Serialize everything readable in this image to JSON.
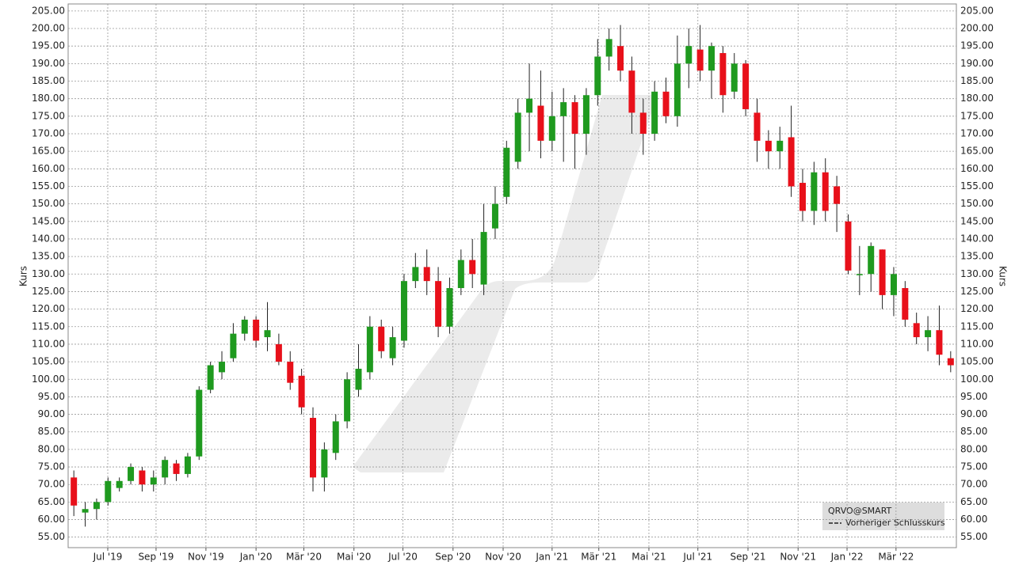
{
  "chart_data": {
    "type": "candlestick",
    "ylabel": "Kurs",
    "legend": {
      "symbol": "QRVO@SMART",
      "previous_close": "Vorheriger Schlusskurs"
    },
    "up_color": "#1f9a1f",
    "down_color": "#e8101a",
    "grid": true,
    "xlim": [
      0,
      78
    ],
    "xticks": [
      {
        "value": 3.48,
        "label": "Jul '19"
      },
      {
        "value": 7.72,
        "label": "Sep '19"
      },
      {
        "value": 12.1,
        "label": "Nov '19"
      },
      {
        "value": 16.5,
        "label": "Jan '20"
      },
      {
        "value": 20.7,
        "label": "Mär '20"
      },
      {
        "value": 25.1,
        "label": "Mai '20"
      },
      {
        "value": 29.4,
        "label": "Jul '20"
      },
      {
        "value": 33.8,
        "label": "Sep '20"
      },
      {
        "value": 38.2,
        "label": "Nov '20"
      },
      {
        "value": 42.5,
        "label": "Jan '21"
      },
      {
        "value": 46.6,
        "label": "Mär '21"
      },
      {
        "value": 51,
        "label": "Mai '21"
      },
      {
        "value": 55.3,
        "label": "Jul '21"
      },
      {
        "value": 59.7,
        "label": "Sep '21"
      },
      {
        "value": 64.1,
        "label": "Nov '21"
      },
      {
        "value": 68.4,
        "label": "Jan '22"
      },
      {
        "value": 72.7,
        "label": "Mär '22"
      }
    ],
    "ylim": [
      52,
      207
    ],
    "yticks": [
      {
        "value": 55,
        "label": "55.00"
      },
      {
        "value": 60,
        "label": "60.00"
      },
      {
        "value": 65,
        "label": "65.00"
      },
      {
        "value": 70,
        "label": "70.00"
      },
      {
        "value": 75,
        "label": "75.00"
      },
      {
        "value": 80,
        "label": "80.00"
      },
      {
        "value": 85,
        "label": "85.00"
      },
      {
        "value": 90,
        "label": "90.00"
      },
      {
        "value": 95,
        "label": "95.00"
      },
      {
        "value": 100,
        "label": "100.00"
      },
      {
        "value": 105,
        "label": "105.00"
      },
      {
        "value": 110,
        "label": "110.00"
      },
      {
        "value": 115,
        "label": "115.00"
      },
      {
        "value": 120,
        "label": "120.00"
      },
      {
        "value": 125,
        "label": "125.00"
      },
      {
        "value": 130,
        "label": "130.00"
      },
      {
        "value": 135,
        "label": "135.00"
      },
      {
        "value": 140,
        "label": "140.00"
      },
      {
        "value": 145,
        "label": "145.00"
      },
      {
        "value": 150,
        "label": "150.00"
      },
      {
        "value": 155,
        "label": "155.00"
      },
      {
        "value": 160,
        "label": "160.00"
      },
      {
        "value": 165,
        "label": "165.00"
      },
      {
        "value": 170,
        "label": "170.00"
      },
      {
        "value": 175,
        "label": "175.00"
      },
      {
        "value": 180,
        "label": "180.00"
      },
      {
        "value": 185,
        "label": "185.00"
      },
      {
        "value": 190,
        "label": "190.00"
      },
      {
        "value": 195,
        "label": "195.00"
      },
      {
        "value": 200,
        "label": "200.00"
      },
      {
        "value": 205,
        "label": "205.00"
      }
    ],
    "open": [
      72,
      62,
      63,
      65,
      69,
      71,
      74,
      70,
      72,
      76,
      73,
      78,
      97,
      102,
      106,
      113,
      117,
      112,
      110,
      105,
      101,
      89,
      72,
      79,
      88,
      97,
      102,
      115,
      106,
      111,
      128,
      132,
      128,
      115,
      126,
      134,
      127,
      143,
      152,
      162,
      176,
      178,
      168,
      175,
      179,
      170,
      181,
      192,
      195,
      188,
      176,
      170,
      182,
      175,
      190,
      194,
      188,
      193,
      182,
      190,
      176,
      168,
      165,
      169,
      156,
      148,
      159,
      155,
      145,
      130,
      130,
      137,
      124,
      126,
      116,
      112,
      114,
      106
    ],
    "high": [
      74,
      65,
      66,
      72,
      72,
      76,
      75,
      74,
      78,
      77,
      79,
      98,
      105,
      108,
      116,
      118,
      118,
      122,
      113,
      108,
      103,
      92,
      82,
      90,
      102,
      110,
      118,
      117,
      115,
      130,
      136,
      137,
      132,
      129,
      137,
      140,
      150,
      155,
      168,
      180,
      190,
      188,
      182,
      183,
      181,
      183,
      197,
      200,
      201,
      192,
      180,
      185,
      186,
      198,
      200,
      201,
      196,
      195,
      193,
      191,
      180,
      171,
      172,
      178,
      160,
      162,
      163,
      158,
      147,
      138,
      139,
      137,
      132,
      128,
      119,
      118,
      121,
      108
    ],
    "low": [
      61,
      58,
      60,
      64,
      68,
      70,
      68,
      68,
      70,
      71,
      72,
      77,
      96,
      100,
      105,
      111,
      109,
      108,
      104,
      97,
      90,
      68,
      68,
      77,
      86,
      95,
      100,
      106,
      104,
      109,
      126,
      124,
      112,
      113,
      124,
      126,
      124,
      140,
      150,
      160,
      165,
      163,
      165,
      162,
      160,
      164,
      178,
      188,
      185,
      170,
      164,
      168,
      173,
      172,
      183,
      185,
      180,
      176,
      180,
      175,
      162,
      160,
      160,
      152,
      145,
      144,
      145,
      142,
      130,
      124,
      125,
      120,
      118,
      115,
      110,
      108,
      104,
      102
    ],
    "close": [
      64,
      63,
      65,
      71,
      71,
      75,
      70,
      72,
      77,
      73,
      78,
      97,
      104,
      105,
      113,
      117,
      111,
      114,
      105,
      99,
      92,
      72,
      80,
      88,
      100,
      103,
      115,
      108,
      112,
      128,
      132,
      128,
      115,
      126,
      134,
      130,
      142,
      150,
      166,
      176,
      180,
      168,
      175,
      179,
      170,
      181,
      192,
      197,
      188,
      176,
      170,
      182,
      175,
      190,
      195,
      188,
      195,
      181,
      190,
      177,
      168,
      165,
      168,
      155,
      148,
      159,
      148,
      150,
      131,
      130,
      138,
      124,
      130,
      117,
      112,
      114,
      107,
      104
    ]
  }
}
